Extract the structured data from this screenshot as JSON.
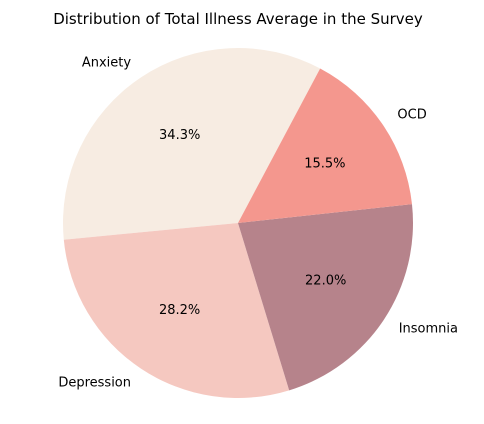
{
  "chart_data": {
    "type": "pie",
    "title": "Distribution of Total Illness Average in the Survey",
    "slices": [
      {
        "label": "Anxiety",
        "value": 34.3,
        "pct_label": "34.3%",
        "color": "#f7ece2"
      },
      {
        "label": "Depression",
        "value": 28.2,
        "pct_label": "28.2%",
        "color": "#f5c8c0"
      },
      {
        "label": "Insomnia",
        "value": 22.0,
        "pct_label": "22.0%",
        "color": "#b6838b"
      },
      {
        "label": "OCD",
        "value": 15.5,
        "pct_label": "15.5%",
        "color": "#f4978e"
      }
    ]
  }
}
